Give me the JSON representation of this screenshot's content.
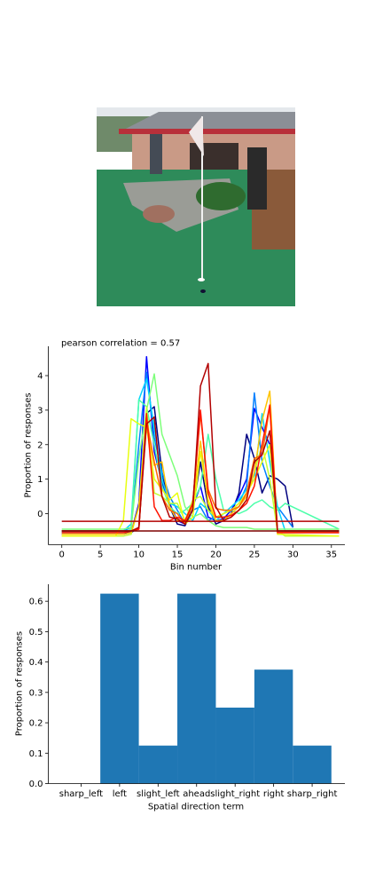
{
  "photo": {
    "alt": "mini golf course photo"
  },
  "chart_data": [
    {
      "type": "line",
      "title": "pearson correlation = 0.57",
      "xlabel": "Bin number",
      "ylabel": "Proportion of responses",
      "xlim": [
        -1.75,
        36.75
      ],
      "ylim": [
        -0.9,
        4.85
      ],
      "xticks": [
        0,
        5,
        10,
        15,
        20,
        25,
        30,
        35
      ],
      "yticks": [
        0,
        1,
        2,
        3,
        4
      ],
      "legend": "none",
      "grid": false,
      "series": [
        {
          "color": "#00007f",
          "x": [
            0,
            8,
            9,
            10,
            11,
            12,
            13,
            14,
            15,
            16,
            17,
            18,
            19,
            20,
            21,
            22,
            23,
            24,
            25,
            26,
            27,
            28,
            29,
            30
          ],
          "y": [
            -0.55,
            -0.55,
            -0.55,
            -0.4,
            2.9,
            3.1,
            1.2,
            0.2,
            -0.3,
            -0.35,
            0.1,
            1.5,
            0.2,
            -0.3,
            -0.2,
            0,
            0.6,
            2.3,
            1.6,
            0.6,
            1.1,
            1.0,
            0.8,
            -0.4
          ]
        },
        {
          "color": "#0000ff",
          "x": [
            0,
            8,
            9,
            10,
            11,
            12,
            13,
            14,
            15,
            16,
            17,
            18,
            19,
            20,
            21,
            22,
            23,
            24,
            25,
            26,
            27,
            28,
            29,
            36
          ],
          "y": [
            -0.6,
            -0.6,
            -0.55,
            0.3,
            4.55,
            1.8,
            0.9,
            0.3,
            -0.2,
            -0.3,
            0.2,
            0.8,
            -0.1,
            -0.2,
            -0.15,
            0.1,
            0.5,
            1.0,
            3.05,
            2.5,
            2.0,
            -0.55,
            -0.55,
            -0.55
          ]
        },
        {
          "color": "#0080ff",
          "x": [
            0,
            8,
            9,
            10,
            11,
            12,
            13,
            14,
            15,
            16,
            17,
            18,
            19,
            20,
            21,
            22,
            23,
            24,
            25,
            26,
            27,
            28,
            29,
            30
          ],
          "y": [
            -0.5,
            -0.5,
            -0.4,
            2.0,
            4.1,
            2.2,
            1.2,
            0.5,
            0.1,
            -0.3,
            0.1,
            0.2,
            -0.2,
            -0.1,
            0,
            0.1,
            0.3,
            0.8,
            3.5,
            1.5,
            0.8,
            0.2,
            -0.1,
            -0.4
          ]
        },
        {
          "color": "#00d4ff",
          "x": [
            0,
            8,
            9,
            10,
            11,
            12,
            13,
            14,
            15,
            16,
            17,
            18,
            19,
            20,
            21,
            22,
            23,
            24,
            25,
            26,
            27,
            28,
            29,
            36
          ],
          "y": [
            -0.5,
            -0.5,
            -0.3,
            3.3,
            3.9,
            2.5,
            1.0,
            0.3,
            0.2,
            0.0,
            -0.2,
            0.3,
            0.1,
            -0.2,
            0,
            0.2,
            0.4,
            0.7,
            1.0,
            2.9,
            1.5,
            0.2,
            -0.5,
            -0.5
          ]
        },
        {
          "color": "#4cffaa",
          "x": [
            0,
            8,
            9,
            10,
            11,
            12,
            13,
            14,
            15,
            16,
            17,
            18,
            19,
            20,
            21,
            22,
            23,
            24,
            25,
            26,
            27,
            28,
            29,
            36
          ],
          "y": [
            -0.55,
            -0.55,
            -0.45,
            3.3,
            3.1,
            2.0,
            0.8,
            0.2,
            0,
            0.1,
            0.3,
            0.8,
            2.3,
            1.0,
            0.1,
            0.1,
            0,
            0.1,
            0.3,
            0.4,
            0.2,
            0.1,
            0.3,
            -0.45
          ]
        },
        {
          "color": "#7dff7a",
          "x": [
            0,
            8,
            9,
            10,
            11,
            12,
            13,
            14,
            15,
            16,
            17,
            18,
            19,
            20,
            21,
            22,
            23,
            24,
            25,
            26,
            27,
            28,
            36
          ],
          "y": [
            -0.45,
            -0.45,
            -0.4,
            1.6,
            3.0,
            4.05,
            2.3,
            1.7,
            1.1,
            0.2,
            -0.1,
            0.0,
            -0.2,
            -0.35,
            -0.4,
            -0.4,
            -0.4,
            -0.4,
            -0.45,
            -0.45,
            -0.45,
            -0.45,
            -0.45
          ]
        },
        {
          "color": "#c4ff36",
          "x": [
            0,
            8,
            9,
            10,
            11,
            12,
            13,
            14,
            15,
            16,
            17,
            18,
            19,
            20,
            21,
            22,
            23,
            24,
            25,
            26,
            27,
            28,
            29,
            36
          ],
          "y": [
            -0.65,
            -0.65,
            -0.6,
            0.2,
            3.1,
            0.6,
            0.5,
            0.3,
            0.3,
            -0.2,
            0.4,
            0.5,
            0.1,
            -0.1,
            0,
            0.1,
            0.3,
            0.6,
            1.2,
            2.0,
            1.0,
            -0.5,
            -0.65,
            -0.65
          ]
        },
        {
          "color": "#e8ff10",
          "x": [
            0,
            7,
            8,
            9,
            10,
            11,
            12,
            13,
            14,
            15,
            16,
            17,
            18,
            19,
            20,
            21,
            22,
            23,
            24,
            25,
            26,
            27,
            28,
            36
          ],
          "y": [
            -0.65,
            -0.65,
            -0.2,
            2.75,
            2.6,
            2.5,
            1.0,
            0.7,
            0.4,
            0.6,
            -0.3,
            -0.1,
            1.8,
            0.4,
            -0.1,
            0,
            0.1,
            0.3,
            0.6,
            1.0,
            1.5,
            2.0,
            -0.6,
            -0.65
          ]
        },
        {
          "color": "#ffc400",
          "x": [
            0,
            8,
            9,
            10,
            11,
            12,
            13,
            14,
            15,
            16,
            17,
            18,
            19,
            20,
            21,
            22,
            23,
            24,
            25,
            26,
            27,
            28,
            36
          ],
          "y": [
            -0.6,
            -0.6,
            -0.55,
            0.2,
            2.6,
            1.4,
            1.5,
            0.2,
            -0.2,
            -0.2,
            0.2,
            2.1,
            0.3,
            -0.2,
            -0.2,
            0,
            0.2,
            0.5,
            1.2,
            2.7,
            3.55,
            -0.55,
            -0.55
          ]
        },
        {
          "color": "#ff6800",
          "x": [
            0,
            8,
            9,
            10,
            11,
            12,
            13,
            14,
            15,
            16,
            17,
            18,
            19,
            20,
            21,
            22,
            23,
            24,
            25,
            26,
            27,
            28,
            36
          ],
          "y": [
            -0.5,
            -0.5,
            -0.5,
            -0.45,
            2.7,
            1.5,
            0.5,
            0.1,
            0,
            -0.3,
            0.3,
            2.9,
            0.7,
            0.15,
            0.1,
            0.1,
            0.2,
            0.6,
            1.6,
            1.7,
            3.1,
            -0.5,
            -0.5
          ]
        },
        {
          "color": "#ff1300",
          "x": [
            0,
            8,
            9,
            10,
            11,
            12,
            13,
            14,
            15,
            16,
            17,
            18,
            19,
            20,
            21,
            22,
            23,
            24,
            25,
            26,
            27,
            28,
            36
          ],
          "y": [
            -0.55,
            -0.55,
            -0.5,
            -0.45,
            2.9,
            0.2,
            -0.2,
            -0.2,
            -0.1,
            -0.2,
            0.3,
            3.0,
            0.6,
            -0.1,
            -0.1,
            -0.05,
            0.1,
            0.3,
            0.8,
            2.0,
            3.15,
            -0.55,
            -0.55
          ]
        },
        {
          "color": "#b20000",
          "x": [
            0,
            8,
            9,
            10,
            11,
            12,
            13,
            14,
            15,
            16,
            17,
            18,
            19,
            20,
            21,
            22,
            23,
            24,
            25,
            26,
            27,
            28,
            36
          ],
          "y": [
            -0.5,
            -0.5,
            -0.5,
            -0.4,
            2.6,
            2.8,
            0.5,
            -0.1,
            -0.15,
            -0.3,
            0.1,
            3.7,
            4.35,
            0.2,
            -0.2,
            -0.1,
            0.1,
            0.4,
            1.5,
            1.7,
            2.4,
            -0.5,
            -0.5
          ]
        },
        {
          "color": "#b20000",
          "x": [
            0,
            36
          ],
          "y": [
            -0.22,
            -0.22
          ]
        },
        {
          "color": "#7f0000",
          "x": [
            0,
            36
          ],
          "y": [
            -0.5,
            -0.5
          ]
        }
      ]
    },
    {
      "type": "bar",
      "xlabel": "Spatial direction term",
      "ylabel": "Proportion of responses",
      "ylim": [
        0,
        0.656
      ],
      "yticks": [
        0.0,
        0.1,
        0.2,
        0.3,
        0.4,
        0.5,
        0.6
      ],
      "color": "#1f77b4",
      "categories": [
        "sharp_left",
        "left",
        "slight_left",
        "ahead",
        "slight_right",
        "right",
        "sharp_right"
      ],
      "values": [
        0.0,
        0.625,
        0.125,
        0.625,
        0.25,
        0.375,
        0.125
      ]
    }
  ]
}
